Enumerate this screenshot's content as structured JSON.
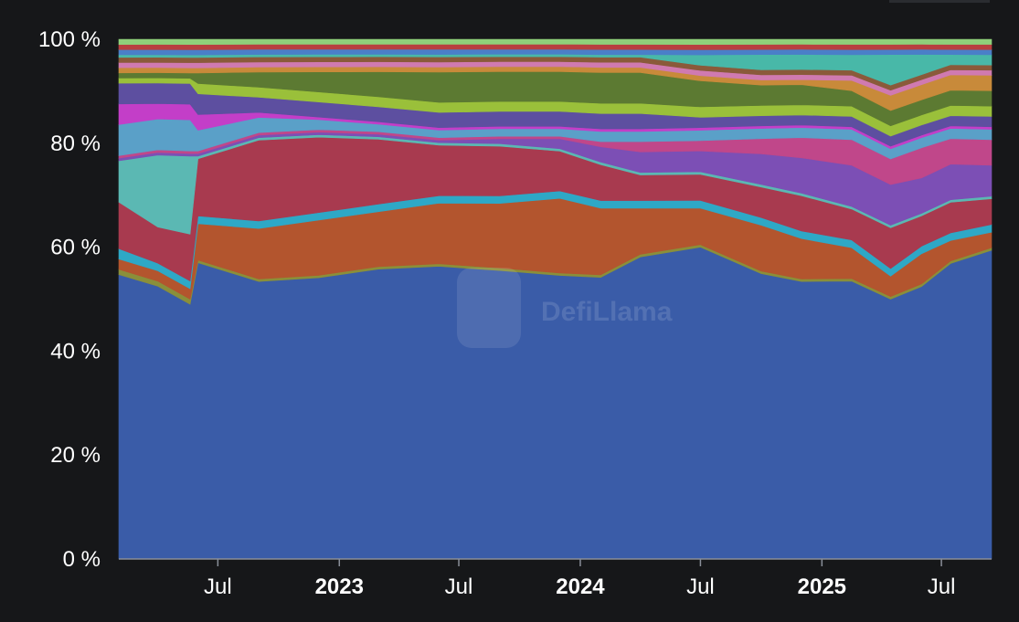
{
  "watermark": "DefiLlama",
  "colors": {
    "background": "#161719",
    "axis": "#8a8f99",
    "tick_text": "#ffffff"
  },
  "chart_data": {
    "type": "area",
    "stacked": true,
    "normalized": true,
    "title": "",
    "xlabel": "",
    "ylabel": "",
    "ylim": [
      0,
      100
    ],
    "y_ticks": [
      "0 %",
      "20 %",
      "40 %",
      "60 %",
      "80 %",
      "100 %"
    ],
    "x_range": [
      "2022-02-01",
      "2025-09-15"
    ],
    "x_ticks": [
      {
        "date": "2022-07-01",
        "label": "Jul",
        "major": false
      },
      {
        "date": "2023-01-01",
        "label": "2023",
        "major": true
      },
      {
        "date": "2023-07-01",
        "label": "Jul",
        "major": false
      },
      {
        "date": "2024-01-01",
        "label": "2024",
        "major": true
      },
      {
        "date": "2024-07-01",
        "label": "Jul",
        "major": false
      },
      {
        "date": "2025-01-01",
        "label": "2025",
        "major": true
      },
      {
        "date": "2025-07-01",
        "label": "Jul",
        "major": false
      }
    ],
    "x": [
      "2022-02-01",
      "2022-04-01",
      "2022-05-20",
      "2022-06-01",
      "2022-09-01",
      "2022-12-01",
      "2023-03-01",
      "2023-06-01",
      "2023-09-01",
      "2023-12-01",
      "2024-02-01",
      "2024-04-01",
      "2024-07-01",
      "2024-10-01",
      "2024-12-01",
      "2025-02-15",
      "2025-04-15",
      "2025-06-01",
      "2025-07-15",
      "2025-09-15"
    ],
    "series": [
      {
        "color": "#3a5ca8",
        "values": [
          55,
          53,
          49,
          57,
          55,
          56,
          58,
          58,
          58,
          57,
          55,
          59,
          60,
          56,
          55,
          54,
          51,
          54,
          58,
          60
        ]
      },
      {
        "color": "#8a8f3a",
        "values": [
          1,
          1,
          1,
          0.5,
          0.5,
          0.5,
          0.5,
          0.5,
          0.5,
          0.5,
          0.5,
          0.5,
          0.5,
          0.5,
          0.5,
          0.5,
          0.5,
          0.5,
          0.5,
          0.5
        ]
      },
      {
        "color": "#b3552e",
        "values": [
          2,
          2,
          2,
          7,
          10,
          11,
          11,
          12,
          13,
          15,
          13,
          9,
          7,
          9,
          8,
          6,
          4,
          6,
          4,
          3
        ]
      },
      {
        "color": "#2ea8c6",
        "values": [
          2,
          1.5,
          1.5,
          1.5,
          1.5,
          1.5,
          1.5,
          1.5,
          1.5,
          1.5,
          1.5,
          1.5,
          1.5,
          1.5,
          1.5,
          1.5,
          1.5,
          1.5,
          1.5,
          1.5
        ]
      },
      {
        "color": "#a83a4f",
        "values": [
          9,
          7,
          9,
          11,
          16,
          15,
          13,
          10,
          10,
          8,
          7,
          5,
          5,
          6,
          7,
          6,
          8,
          6,
          6,
          5
        ]
      },
      {
        "color": "#5bb8b3",
        "values": [
          8,
          14,
          15,
          0.5,
          0.5,
          0.5,
          0.5,
          0.5,
          0.5,
          0.5,
          0.5,
          0.5,
          0.5,
          0.5,
          0.5,
          0.5,
          0.5,
          0.5,
          0.5,
          0.5
        ]
      },
      {
        "color": "#7c4fb5",
        "values": [
          0.5,
          0.5,
          0.5,
          0.5,
          0.5,
          0.5,
          0.5,
          0.5,
          1,
          2,
          3,
          4,
          4,
          6,
          7,
          8,
          8,
          7,
          7,
          6
        ]
      },
      {
        "color": "#c0478a",
        "values": [
          0.5,
          0.5,
          0.5,
          0.5,
          0.5,
          0.5,
          0.5,
          0.5,
          0.5,
          0.5,
          1,
          2,
          2,
          3,
          4,
          5,
          5,
          6,
          5,
          5
        ]
      },
      {
        "color": "#5aa0c8",
        "values": [
          6,
          6,
          6,
          4,
          3,
          2,
          1.5,
          1.5,
          1.5,
          1.5,
          2,
          2,
          2,
          2,
          2,
          2,
          2,
          2,
          2,
          2
        ]
      },
      {
        "color": "#c33ec8",
        "values": [
          4,
          3,
          3,
          3,
          1,
          0.5,
          0.5,
          0.5,
          0.5,
          0.5,
          0.5,
          0.5,
          0.5,
          0.5,
          0.5,
          0.5,
          0.5,
          0.5,
          0.5,
          0.5
        ]
      },
      {
        "color": "#5d4fa0",
        "values": [
          4,
          4,
          4,
          4,
          3,
          3,
          3,
          3,
          3,
          3,
          3,
          3,
          2,
          2,
          2,
          2,
          2,
          2,
          2,
          2
        ]
      },
      {
        "color": "#9ac03a",
        "values": [
          1,
          1,
          1,
          2,
          2,
          2,
          2,
          2,
          2,
          2,
          2,
          2,
          2,
          2,
          2,
          2,
          2,
          2,
          2,
          2
        ]
      },
      {
        "color": "#5c7a32",
        "values": [
          1,
          1,
          1,
          2,
          3,
          4,
          5,
          6,
          6,
          6,
          6,
          6,
          5,
          4,
          4,
          3,
          3,
          3,
          3,
          3
        ]
      },
      {
        "color": "#c88a3a",
        "values": [
          1,
          1,
          1,
          1,
          1,
          1,
          1,
          1,
          1,
          1,
          1,
          1,
          1,
          1,
          1,
          2,
          3,
          3,
          3,
          3
        ]
      },
      {
        "color": "#d07ab0",
        "values": [
          1,
          1,
          1,
          1,
          1,
          1,
          1,
          1,
          1,
          1,
          1,
          1,
          1,
          1,
          1,
          1,
          1,
          1,
          1,
          1
        ]
      },
      {
        "color": "#8a5a3a",
        "values": [
          1,
          1,
          1,
          1,
          1,
          1,
          1,
          1,
          1,
          1,
          1,
          1,
          1,
          1,
          1,
          1,
          1,
          1,
          1,
          1
        ]
      },
      {
        "color": "#48b8a8",
        "values": [
          0.5,
          0.5,
          0.5,
          0.5,
          0.5,
          0.5,
          0.5,
          0.5,
          0.5,
          0.5,
          0.5,
          0.5,
          2,
          3,
          3,
          3,
          6,
          4,
          2,
          2
        ]
      },
      {
        "color": "#4a7fc8",
        "values": [
          1,
          1,
          1,
          1,
          1,
          1,
          1,
          1,
          1,
          1,
          1,
          1,
          1,
          1,
          1,
          1,
          1,
          1,
          1,
          1
        ]
      },
      {
        "color": "#b84040",
        "values": [
          1,
          1,
          1,
          1,
          1,
          1,
          1,
          1,
          1,
          1,
          1,
          1,
          1,
          1,
          1,
          1,
          1,
          1,
          1,
          1
        ]
      },
      {
        "color": "#8fd07a",
        "values": [
          1,
          1,
          1,
          1,
          1,
          1,
          1,
          1,
          1,
          1,
          1,
          1,
          1,
          1,
          1,
          1,
          1,
          1,
          1,
          1
        ]
      }
    ]
  }
}
